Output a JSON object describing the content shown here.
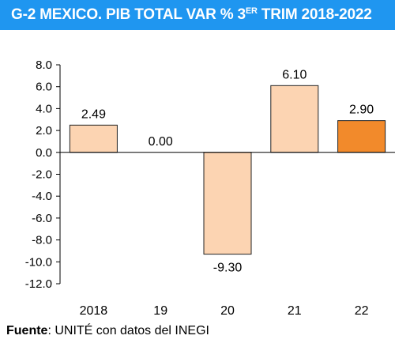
{
  "title": {
    "main": "G-2 MEXICO. PIB TOTAL VAR % 3",
    "superscript": "ER",
    "rest": " TRIM 2018-2022"
  },
  "source": {
    "label": "Fuente",
    "text": ": UNITÉ con datos del INEGI"
  },
  "colors": {
    "title_bg": "#1f96f0",
    "bar_default": "#fcd4b2",
    "bar_highlight": "#f28a2b",
    "bar_stroke": "#222222"
  },
  "chart_data": {
    "type": "bar",
    "categories": [
      "2018",
      "19",
      "20",
      "21",
      "22"
    ],
    "values": [
      2.49,
      0.0,
      -9.3,
      6.1,
      2.9
    ],
    "value_labels": [
      "2.49",
      "0.00",
      "-9.30",
      "6.10",
      "2.90"
    ],
    "highlight_index": 4,
    "ylim": [
      -12.0,
      8.0
    ],
    "yticks": [
      8.0,
      6.0,
      4.0,
      2.0,
      0.0,
      -2.0,
      -4.0,
      -6.0,
      -8.0,
      -10.0,
      -12.0
    ],
    "ytick_labels": [
      "8.0",
      "6.0",
      "4.0",
      "2.0",
      "0.0",
      "-2.0",
      "-4.0",
      "-6.0",
      "-8.0",
      "-10.0",
      "-12.0"
    ],
    "grid": false,
    "xlabel": "",
    "ylabel": ""
  }
}
